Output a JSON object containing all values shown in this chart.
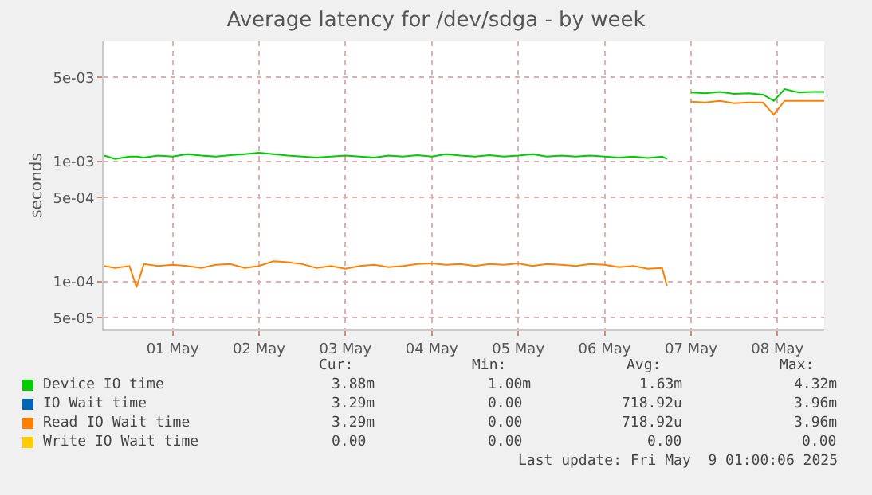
{
  "chart_data": {
    "type": "line",
    "title": "Average latency for /dev/sdga - by week",
    "ylabel": "seconds",
    "x": [
      "2025-04-30T17:00",
      "2025-04-30T20:00",
      "2025-05-01T00:00",
      "2025-05-01T02:00",
      "2025-05-01T04:00",
      "2025-05-01T08:00",
      "2025-05-01T12:00",
      "2025-05-01T16:00",
      "2025-05-01T20:00",
      "2025-05-02T00:00",
      "2025-05-02T04:00",
      "2025-05-02T08:00",
      "2025-05-02T12:00",
      "2025-05-02T16:00",
      "2025-05-02T20:00",
      "2025-05-03T00:00",
      "2025-05-03T04:00",
      "2025-05-03T08:00",
      "2025-05-03T12:00",
      "2025-05-03T16:00",
      "2025-05-03T20:00",
      "2025-05-04T00:00",
      "2025-05-04T04:00",
      "2025-05-04T08:00",
      "2025-05-04T12:00",
      "2025-05-04T16:00",
      "2025-05-04T20:00",
      "2025-05-05T00:00",
      "2025-05-05T04:00",
      "2025-05-05T08:00",
      "2025-05-05T12:00",
      "2025-05-05T16:00",
      "2025-05-05T20:00",
      "2025-05-06T00:00",
      "2025-05-06T04:00",
      "2025-05-06T08:00",
      "2025-05-06T12:00",
      "2025-05-06T16:00",
      "2025-05-06T20:00",
      "2025-05-07T00:00",
      "2025-05-07T04:00",
      "2025-05-07T05:20",
      "2025-05-07T08:00",
      "2025-05-07T12:00",
      "2025-05-07T16:00",
      "2025-05-07T20:00",
      "2025-05-08T00:00",
      "2025-05-08T04:00",
      "2025-05-08T08:00",
      "2025-05-08T11:00",
      "2025-05-08T14:00",
      "2025-05-08T18:00",
      "2025-05-08T22:00",
      "2025-05-09T01:00"
    ],
    "series": [
      {
        "name": "Device IO time",
        "color": "#00cc00",
        "values": [
          0.00112,
          0.00105,
          0.0011,
          0.0011,
          0.00108,
          0.00112,
          0.0011,
          0.00115,
          0.00112,
          0.0011,
          0.00113,
          0.00115,
          0.00118,
          0.00115,
          0.00112,
          0.0011,
          0.00108,
          0.0011,
          0.00112,
          0.0011,
          0.00108,
          0.00112,
          0.0011,
          0.00113,
          0.0011,
          0.00115,
          0.00112,
          0.0011,
          0.00113,
          0.0011,
          0.00112,
          0.00115,
          0.0011,
          0.00112,
          0.0011,
          0.00112,
          0.0011,
          0.00108,
          0.0011,
          0.00107,
          0.0011,
          0.00105,
          null,
          0.00375,
          0.0037,
          0.0038,
          0.00365,
          0.0037,
          0.0036,
          0.0032,
          0.004,
          0.00375,
          0.0038,
          0.0038
        ]
      },
      {
        "name": "IO Wait time",
        "color": "#0066b3",
        "values": [
          null,
          null,
          null,
          null,
          null,
          null,
          null,
          null,
          null,
          null,
          null,
          null,
          null,
          null,
          null,
          null,
          null,
          null,
          null,
          null,
          null,
          null,
          null,
          null,
          null,
          null,
          null,
          null,
          null,
          null,
          null,
          null,
          null,
          null,
          null,
          null,
          null,
          null,
          null,
          null,
          null,
          null,
          null,
          null,
          null,
          null,
          null,
          null,
          null,
          null,
          null,
          null,
          null,
          null
        ]
      },
      {
        "name": "Read IO Wait time",
        "color": "#ff8000",
        "values": [
          0.000135,
          0.00013,
          0.000135,
          9e-05,
          0.00014,
          0.000135,
          0.000138,
          0.000135,
          0.00013,
          0.000138,
          0.00014,
          0.00013,
          0.000135,
          0.000148,
          0.000145,
          0.00014,
          0.00013,
          0.000135,
          0.000128,
          0.000135,
          0.000138,
          0.000132,
          0.000135,
          0.00014,
          0.000142,
          0.000138,
          0.00014,
          0.000135,
          0.00014,
          0.000138,
          0.000142,
          0.000135,
          0.00014,
          0.000138,
          0.000135,
          0.00014,
          0.000138,
          0.000132,
          0.000135,
          0.000128,
          0.00013,
          9.2e-05,
          null,
          0.00315,
          0.0031,
          0.0032,
          0.00305,
          0.0031,
          0.0031,
          0.00245,
          0.0032,
          0.0032,
          0.0032,
          0.0032
        ]
      },
      {
        "name": "Write IO Wait time",
        "color": "#ffcc00",
        "values": [
          null,
          null,
          null,
          null,
          null,
          null,
          null,
          null,
          null,
          null,
          null,
          null,
          null,
          null,
          null,
          null,
          null,
          null,
          null,
          null,
          null,
          null,
          null,
          null,
          null,
          null,
          null,
          null,
          null,
          null,
          null,
          null,
          null,
          null,
          null,
          null,
          null,
          null,
          null,
          null,
          null,
          null,
          null,
          null,
          null,
          null,
          null,
          null,
          null,
          null,
          null,
          null,
          null,
          null
        ]
      }
    ],
    "log": "y",
    "ylim": [
      4e-05,
      0.01
    ],
    "yticks": [
      {
        "value": 5e-05,
        "label": "5e-05"
      },
      {
        "value": 0.0001,
        "label": "1e-04"
      },
      {
        "value": 0.0005,
        "label": "5e-04"
      },
      {
        "value": 0.001,
        "label": "1e-03"
      },
      {
        "value": 0.005,
        "label": "5e-03"
      }
    ],
    "xlim": [
      "2025-04-30T16:50",
      "2025-05-09T01:00"
    ],
    "xticks": [
      {
        "value": "2025-05-01T12:00",
        "label": "01 May"
      },
      {
        "value": "2025-05-02T12:00",
        "label": "02 May"
      },
      {
        "value": "2025-05-03T12:00",
        "label": "03 May"
      },
      {
        "value": "2025-05-04T12:00",
        "label": "04 May"
      },
      {
        "value": "2025-05-05T12:00",
        "label": "05 May"
      },
      {
        "value": "2025-05-06T12:00",
        "label": "06 May"
      },
      {
        "value": "2025-05-07T12:00",
        "label": "07 May"
      },
      {
        "value": "2025-05-08T12:00",
        "label": "08 May"
      }
    ],
    "grid": true,
    "legend": "bottom left",
    "annotations": [
      "Cur:",
      "Min:",
      "Avg:",
      "Max:",
      "3.88m",
      "1.00m",
      "1.63m",
      "4.32m",
      "3.29m",
      "0.00",
      "718.92u",
      "3.96m",
      "3.29m",
      "0.00",
      "718.92u",
      "3.96m",
      "0.00",
      "0.00",
      "0.00",
      "0.00",
      "Last update: Fri May  9 01:00:06 2025"
    ]
  }
}
